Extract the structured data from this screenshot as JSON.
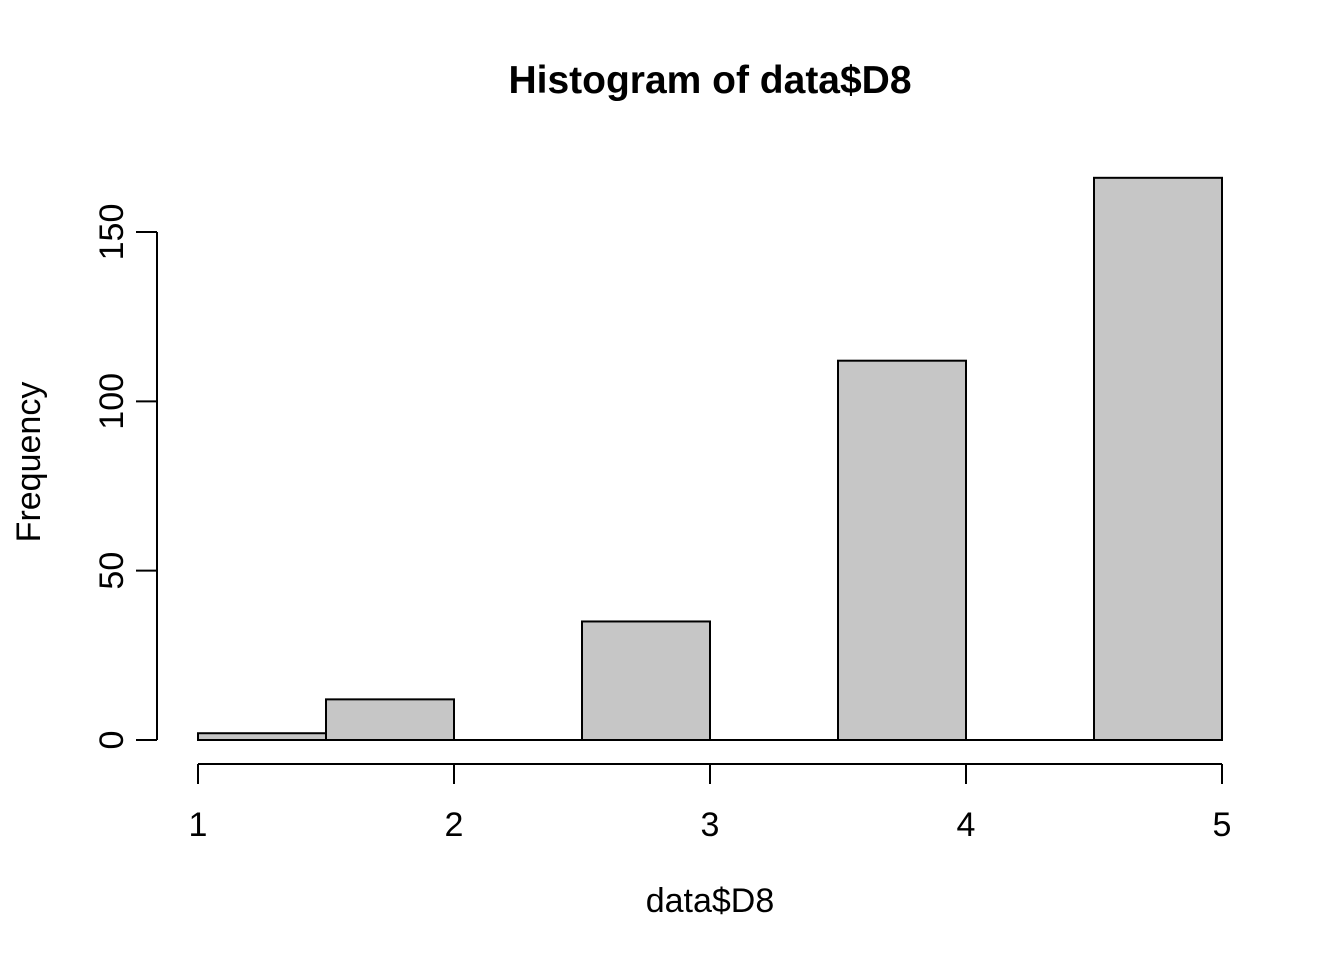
{
  "chart_data": {
    "type": "bar",
    "subtype": "histogram",
    "title": "Histogram of data$D8",
    "xlabel": "data$D8",
    "ylabel": "Frequency",
    "breaks": [
      1,
      1.5,
      2,
      2.5,
      3,
      3.5,
      4,
      4.5,
      5
    ],
    "counts": [
      2,
      12,
      0,
      35,
      0,
      112,
      0,
      166
    ],
    "x_ticks": [
      "1",
      "2",
      "3",
      "4",
      "5"
    ],
    "x_tick_values": [
      1,
      2,
      3,
      4,
      5
    ],
    "y_ticks": [
      "0",
      "50",
      "100",
      "150"
    ],
    "y_tick_values": [
      0,
      50,
      100,
      150
    ],
    "xlim": [
      1,
      5
    ],
    "ylim": [
      0,
      166
    ],
    "grid": false,
    "legend": null,
    "colors": {
      "bar_fill": "#c6c6c6",
      "bar_stroke": "#000000",
      "axis": "#000000",
      "text": "#000000",
      "background": "#ffffff"
    }
  }
}
